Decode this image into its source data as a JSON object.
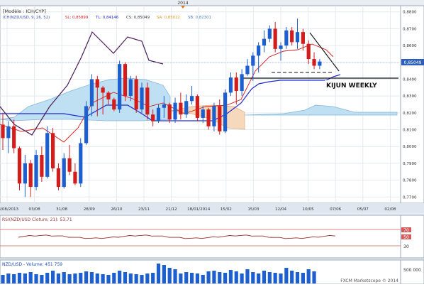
{
  "top_year": "2014",
  "main_panel": {
    "title_line1": "[Modèle : ICH/CYP]",
    "legend": [
      {
        "text": "ICH(NZD/USD, 9, 26, 52)",
        "color": "#3a4fb8"
      },
      {
        "text": "SL: 0,85899",
        "color": "#d21d1d"
      },
      {
        "text": "TL: 0,84146",
        "color": "#1d2bd2"
      },
      {
        "text": "CS: 0,85049",
        "color": "#3a3a3a"
      },
      {
        "text": "SA: 0,85022",
        "color": "#d2952b"
      },
      {
        "text": "SB: 0,82301",
        "color": "#4a7dbf"
      }
    ],
    "price_ticks": [
      "0,8800",
      "0,8700",
      "0,8600",
      "0,8500",
      "0,8400",
      "0,8300",
      "0,8200",
      "0,8100",
      "0,8000",
      "0,7900",
      "0,7800",
      "0,7700"
    ],
    "current_price_label": "0,85049",
    "annotation": "KIJUN WEEKLY"
  },
  "x_axis_labels": [
    "08/08/2013",
    "03/08",
    "31/08",
    "28/09",
    "26/10",
    "23/11",
    "21/12",
    "18/01/2014",
    "15/02",
    "15/03",
    "12/04",
    "10/05",
    "07/06",
    "05/07",
    "02/08"
  ],
  "rsi_panel": {
    "label": "RSI(NZD/USD Cloture, 21): 53,71",
    "ticks": [
      "70",
      "50",
      "30"
    ]
  },
  "volume_panel": {
    "label": "NZD/USD - Volume: 451 759",
    "tick": "500 000",
    "footer": "FXCM Marketscope © 2014"
  },
  "chart_data": {
    "type": "candlestick",
    "instrument": "NZD/USD",
    "ylim": [
      0.768,
      0.882
    ],
    "series": [
      {
        "name": "candles",
        "values": [
          [
            0.813,
            0.82,
            0.798,
            0.805
          ],
          [
            0.805,
            0.815,
            0.796,
            0.812
          ],
          [
            0.812,
            0.816,
            0.796,
            0.799
          ],
          [
            0.799,
            0.8,
            0.774,
            0.778
          ],
          [
            0.778,
            0.795,
            0.77,
            0.79
          ],
          [
            0.79,
            0.792,
            0.77,
            0.776
          ],
          [
            0.776,
            0.798,
            0.774,
            0.795
          ],
          [
            0.795,
            0.8,
            0.779,
            0.782
          ],
          [
            0.782,
            0.812,
            0.781,
            0.808
          ],
          [
            0.808,
            0.811,
            0.785,
            0.787
          ],
          [
            0.787,
            0.79,
            0.774,
            0.776
          ],
          [
            0.776,
            0.796,
            0.775,
            0.793
          ],
          [
            0.793,
            0.801,
            0.783,
            0.785
          ],
          [
            0.785,
            0.79,
            0.777,
            0.778
          ],
          [
            0.778,
            0.805,
            0.776,
            0.802
          ],
          [
            0.802,
            0.827,
            0.801,
            0.824
          ],
          [
            0.824,
            0.843,
            0.818,
            0.84
          ],
          [
            0.84,
            0.842,
            0.818,
            0.835
          ],
          [
            0.835,
            0.836,
            0.819,
            0.832
          ],
          [
            0.832,
            0.833,
            0.825,
            0.828
          ],
          [
            0.828,
            0.829,
            0.821,
            0.822
          ],
          [
            0.822,
            0.851,
            0.82,
            0.849
          ],
          [
            0.849,
            0.85,
            0.827,
            0.83
          ],
          [
            0.83,
            0.842,
            0.827,
            0.84
          ],
          [
            0.84,
            0.842,
            0.82,
            0.822
          ],
          [
            0.822,
            0.838,
            0.82,
            0.835
          ],
          [
            0.835,
            0.838,
            0.816,
            0.819
          ],
          [
            0.819,
            0.822,
            0.812,
            0.815
          ],
          [
            0.815,
            0.825,
            0.814,
            0.823
          ],
          [
            0.823,
            0.83,
            0.817,
            0.825
          ],
          [
            0.825,
            0.826,
            0.814,
            0.816
          ],
          [
            0.816,
            0.829,
            0.814,
            0.826
          ],
          [
            0.826,
            0.832,
            0.816,
            0.819
          ],
          [
            0.819,
            0.831,
            0.817,
            0.827
          ],
          [
            0.827,
            0.836,
            0.825,
            0.83
          ],
          [
            0.83,
            0.831,
            0.815,
            0.817
          ],
          [
            0.817,
            0.824,
            0.814,
            0.822
          ],
          [
            0.822,
            0.823,
            0.81,
            0.812
          ],
          [
            0.812,
            0.826,
            0.809,
            0.824
          ],
          [
            0.824,
            0.828,
            0.807,
            0.809
          ],
          [
            0.809,
            0.834,
            0.808,
            0.832
          ],
          [
            0.832,
            0.844,
            0.83,
            0.841
          ],
          [
            0.841,
            0.844,
            0.825,
            0.833
          ],
          [
            0.833,
            0.846,
            0.83,
            0.843
          ],
          [
            0.843,
            0.852,
            0.842,
            0.848
          ],
          [
            0.848,
            0.856,
            0.839,
            0.854
          ],
          [
            0.854,
            0.862,
            0.844,
            0.86
          ],
          [
            0.86,
            0.869,
            0.856,
            0.864
          ],
          [
            0.864,
            0.872,
            0.862,
            0.87
          ],
          [
            0.87,
            0.874,
            0.856,
            0.858
          ],
          [
            0.858,
            0.862,
            0.851,
            0.86
          ],
          [
            0.86,
            0.871,
            0.858,
            0.869
          ],
          [
            0.869,
            0.871,
            0.86,
            0.862
          ],
          [
            0.862,
            0.876,
            0.858,
            0.868
          ],
          [
            0.868,
            0.87,
            0.857,
            0.861
          ],
          [
            0.861,
            0.863,
            0.849,
            0.852
          ],
          [
            0.852,
            0.856,
            0.846,
            0.848
          ],
          [
            0.848,
            0.852,
            0.846,
            0.8505
          ]
        ]
      }
    ],
    "rsi_value": 53.71,
    "volume_value": 451759
  }
}
